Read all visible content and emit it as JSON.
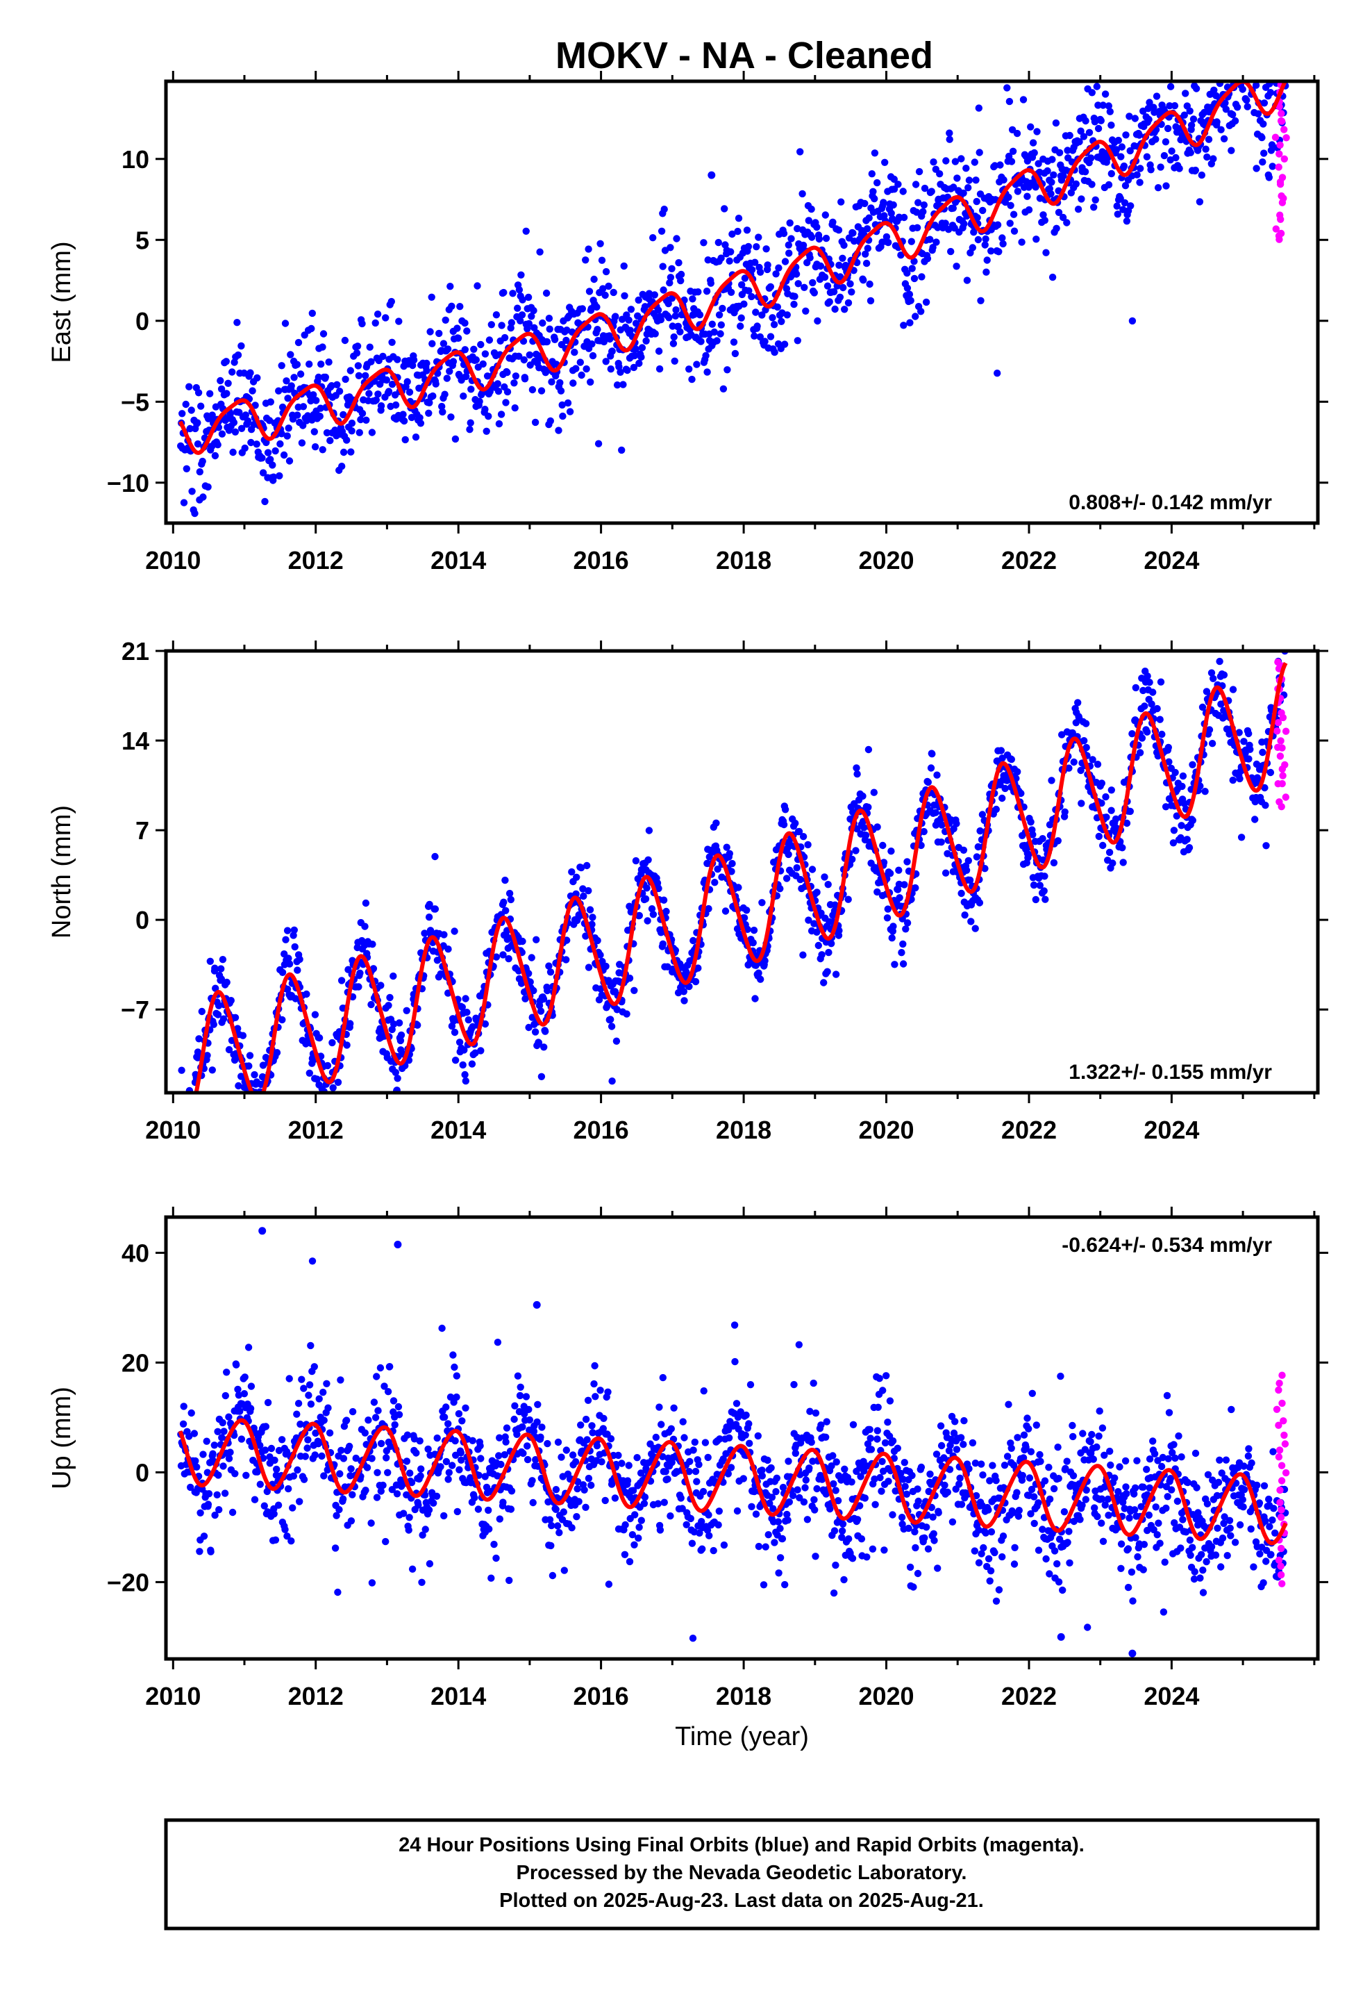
{
  "title": "MOKV  - NA - Cleaned",
  "footer": {
    "lines": [
      "24 Hour Positions Using Final Orbits (blue) and Rapid Orbits (magenta).",
      "Processed by the Nevada Geodetic Laboratory.",
      "Plotted on 2025-Aug-23. Last data on 2025-Aug-21."
    ]
  },
  "colors": {
    "final_orbits": "#0000ff",
    "rapid_orbits": "#ff00ff",
    "model_fit": "#ff0000",
    "frame": "#000000"
  },
  "chart_data": [
    {
      "type": "scatter",
      "ylabel": "East (mm)",
      "xlabel": "",
      "xlim": [
        2009.9,
        2026.05
      ],
      "ylim": [
        -12.5,
        14.8
      ],
      "x_ticks": [
        2010,
        2012,
        2014,
        2016,
        2018,
        2020,
        2022,
        2024
      ],
      "y_ticks": [
        -10,
        -5,
        0,
        5,
        10
      ],
      "rate": "0.808+/- 0.142 mm/yr",
      "rate_position": "bottom-right",
      "model": {
        "t0": 2010.1,
        "t_end": 2025.6,
        "offset": -6.8,
        "trend": 0.808,
        "accel": 0.038,
        "amp1": 1.3,
        "phase1": 2.3,
        "amp2": 0.3,
        "phase2": 0.5
      },
      "scatter": {
        "sigma": 1.5,
        "spread": 1.3,
        "count": 1700
      },
      "rapid": {
        "x_start": 2025.45,
        "x_end": 2025.62,
        "y_min": 5.0,
        "y_max": 14.5,
        "count": 26
      },
      "outliers": [
        {
          "x": 2017.55,
          "y": 9.0
        }
      ]
    },
    {
      "type": "scatter",
      "ylabel": "North (mm)",
      "xlabel": "",
      "xlim": [
        2009.9,
        2026.05
      ],
      "ylim": [
        -13.5,
        21.0
      ],
      "x_ticks": [
        2010,
        2012,
        2014,
        2016,
        2018,
        2020,
        2022,
        2024
      ],
      "y_ticks": [
        -7,
        0,
        7,
        14,
        21
      ],
      "rate": "1.322+/- 0.155 mm/yr",
      "rate_position": "bottom-right",
      "model": {
        "t0": 2010.1,
        "t_end": 2025.6,
        "offset": -11.0,
        "trend": 1.322,
        "accel": 0.025,
        "amp1": 4.5,
        "phase1": 3.7,
        "amp2": 0.5,
        "phase2": 1.0
      },
      "scatter": {
        "sigma": 1.3,
        "spread": 1.2,
        "count": 1700
      },
      "rapid": {
        "x_start": 2025.45,
        "x_end": 2025.62,
        "y_min": 9.0,
        "y_max": 20.5,
        "count": 26
      },
      "outliers": []
    },
    {
      "type": "scatter",
      "ylabel": "Up (mm)",
      "xlabel": "Time (year)",
      "xlim": [
        2009.9,
        2026.05
      ],
      "ylim": [
        -34.0,
        46.5
      ],
      "x_ticks": [
        2010,
        2012,
        2014,
        2016,
        2018,
        2020,
        2022,
        2024
      ],
      "y_ticks": [
        -20,
        0,
        20,
        40
      ],
      "rate": "-0.624+/- 0.534 mm/yr",
      "rate_position": "top-right",
      "model": {
        "t0": 2010.1,
        "t_end": 2025.6,
        "offset": 4.0,
        "trend": -0.624,
        "accel": -0.005,
        "amp1": 6.0,
        "phase1": 2.0,
        "amp2": 0.6,
        "phase2": 0.7
      },
      "scatter": {
        "sigma": 4.5,
        "spread": 1.4,
        "count": 1700
      },
      "rapid": {
        "x_start": 2025.45,
        "x_end": 2025.62,
        "y_min": -20.0,
        "y_max": 17.5,
        "count": 26
      },
      "outliers": [
        {
          "x": 2011.25,
          "y": 44.0
        },
        {
          "x": 2013.15,
          "y": 41.5
        },
        {
          "x": 2015.1,
          "y": 30.5
        },
        {
          "x": 2022.45,
          "y": -30.0
        },
        {
          "x": 2023.45,
          "y": -33.0
        }
      ]
    }
  ]
}
